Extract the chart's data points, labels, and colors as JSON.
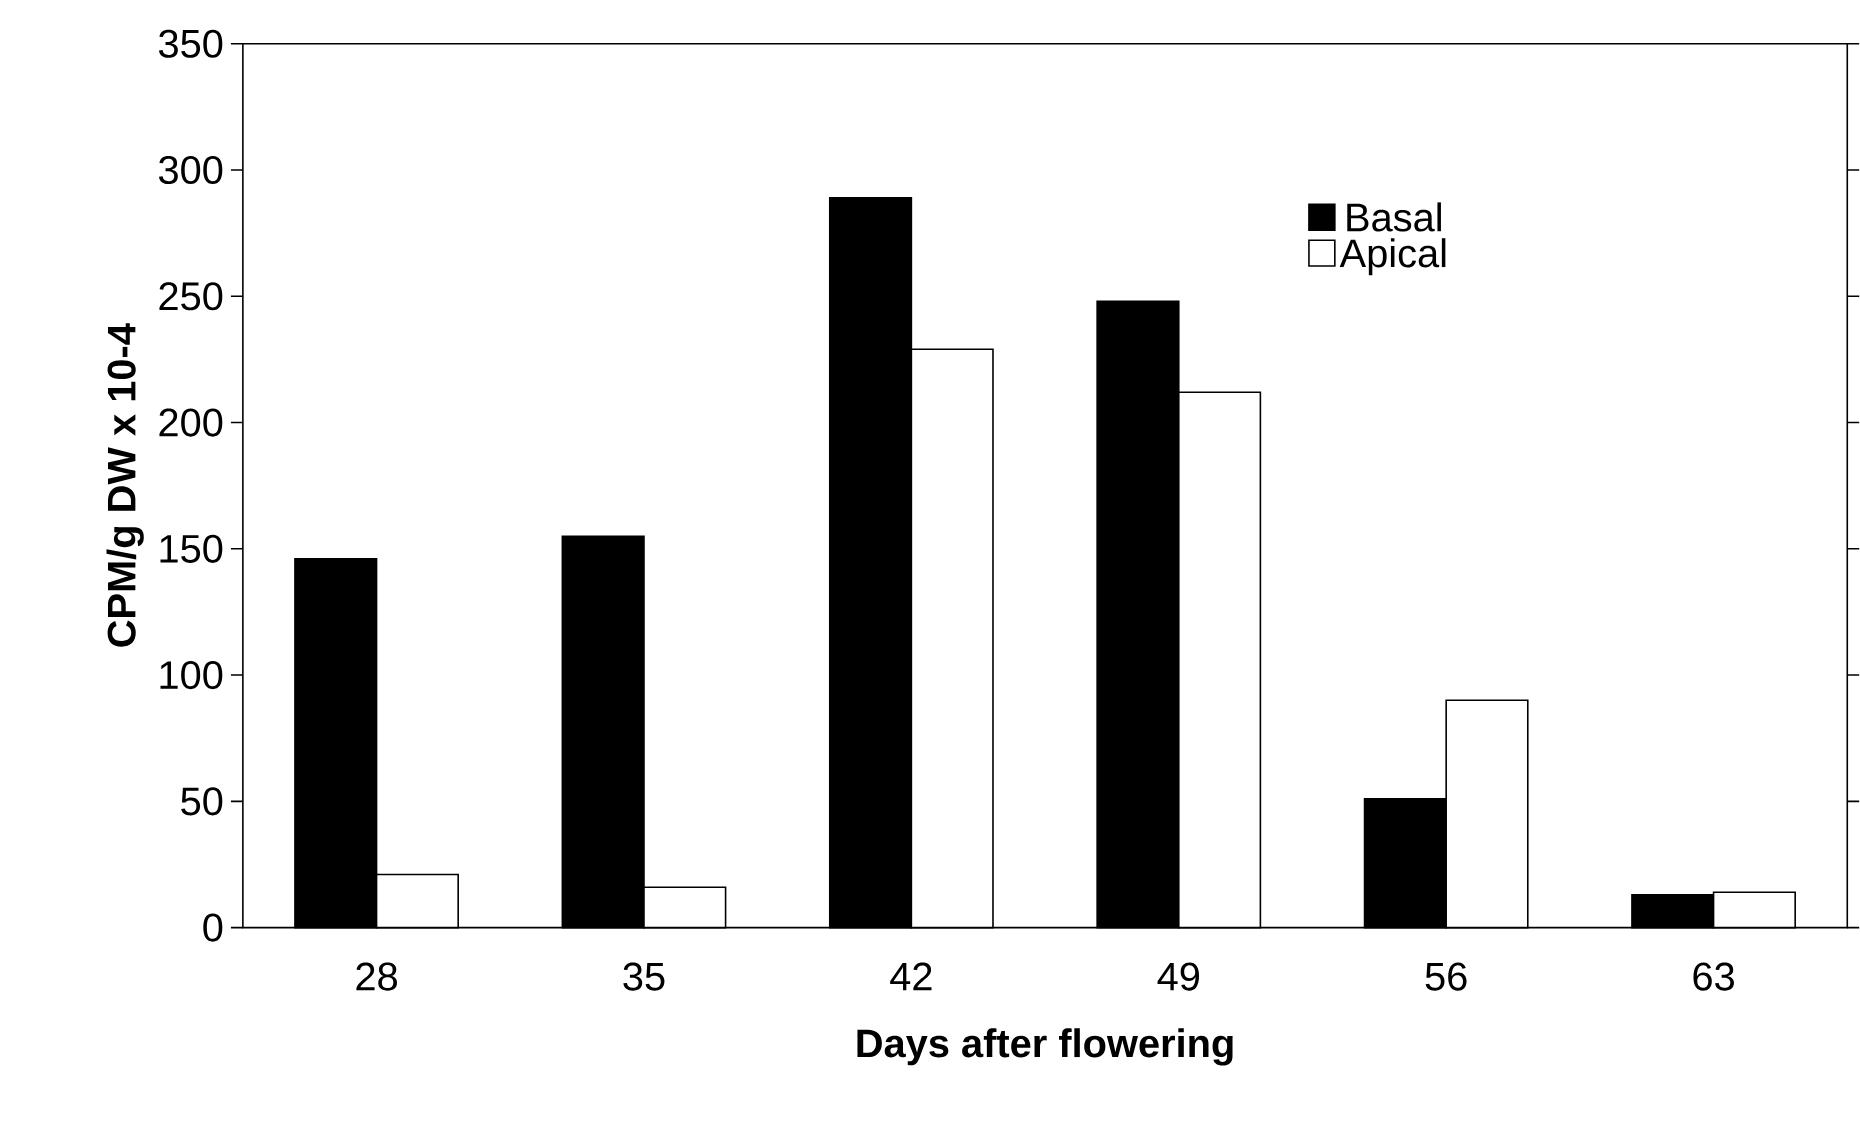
{
  "chart_data": {
    "type": "bar",
    "xlabel": "Days after flowering",
    "ylabel": "CPM/g DW x 10-4",
    "categories": [
      "28",
      "35",
      "42",
      "49",
      "56",
      "63"
    ],
    "series": [
      {
        "name": "Basal",
        "color": "#000000",
        "values": [
          146,
          155,
          289,
          248,
          51,
          13
        ]
      },
      {
        "name": "Apical",
        "color": "#ffffff",
        "values": [
          21,
          16,
          229,
          212,
          90,
          14
        ]
      }
    ],
    "ylim": [
      0,
      350
    ],
    "yticks": [
      0,
      50,
      100,
      150,
      200,
      250,
      300,
      350
    ],
    "grid": false,
    "legend": "top right"
  }
}
